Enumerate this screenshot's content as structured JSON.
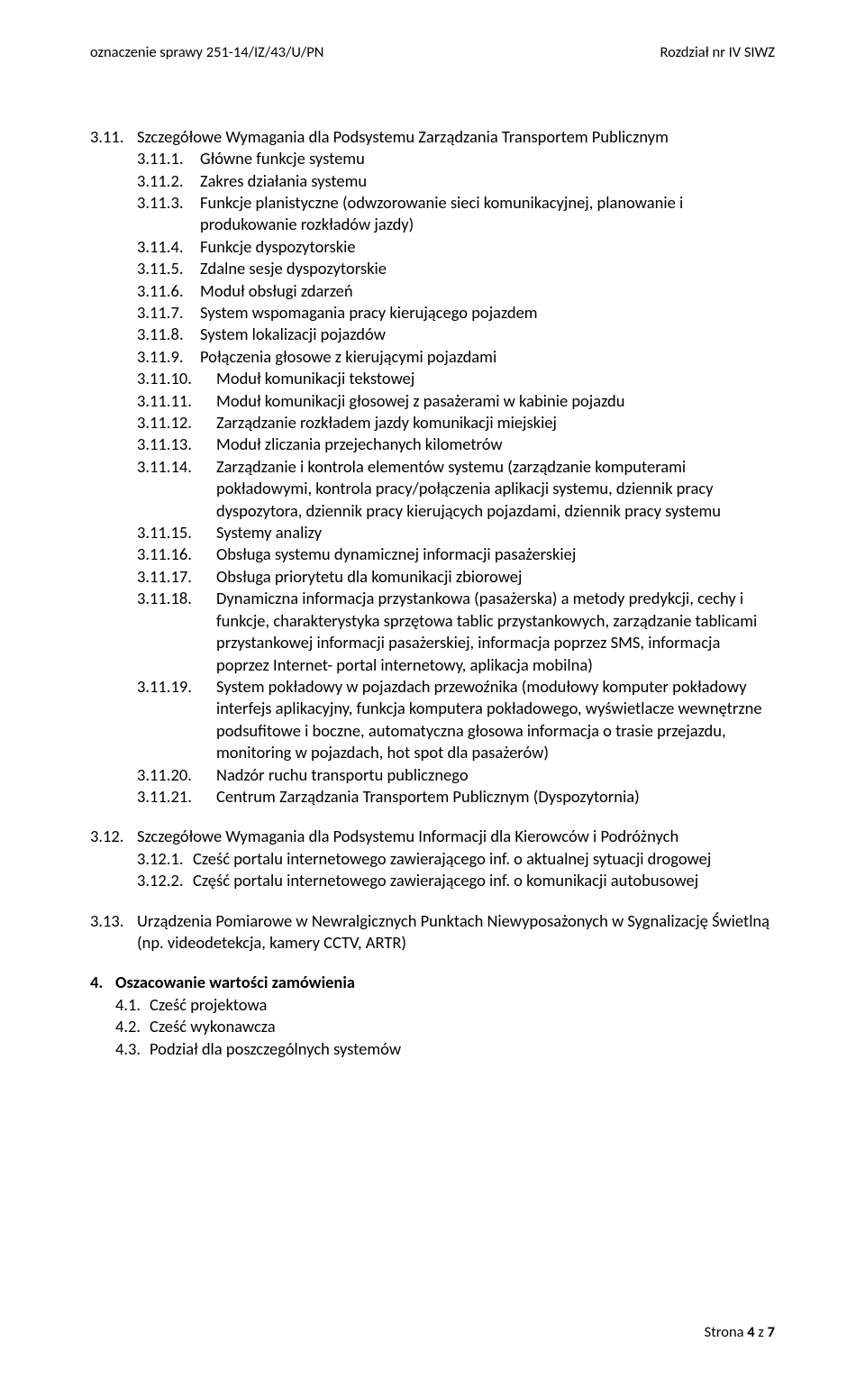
{
  "header": {
    "left": "oznaczenie sprawy 251-14/IZ/43/U/PN",
    "right": "Rozdział nr IV SIWZ"
  },
  "s311": {
    "num": "3.11.",
    "title": "Szczegółowe Wymagania dla Podsystemu Zarządzania Transportem Publicznym",
    "items_a": [
      {
        "num": "3.11.1.",
        "txt": "Główne funkcje systemu"
      },
      {
        "num": "3.11.2.",
        "txt": "Zakres działania systemu"
      },
      {
        "num": "3.11.3.",
        "txt": "Funkcje planistyczne (odwzorowanie sieci komunikacyjnej, planowanie i produkowanie rozkładów jazdy)"
      },
      {
        "num": "3.11.4.",
        "txt": "Funkcje dyspozytorskie"
      },
      {
        "num": "3.11.5.",
        "txt": "Zdalne sesje dyspozytorskie"
      },
      {
        "num": "3.11.6.",
        "txt": "Moduł obsługi zdarzeń"
      },
      {
        "num": "3.11.7.",
        "txt": " System wspomagania pracy kierującego pojazdem"
      },
      {
        "num": "3.11.8.",
        "txt": " System lokalizacji pojazdów"
      },
      {
        "num": "3.11.9.",
        "txt": " Połączenia głosowe z kierującymi pojazdami"
      }
    ],
    "items_b": [
      {
        "num": "3.11.10.",
        "txt": "Moduł komunikacji tekstowej"
      },
      {
        "num": "3.11.11.",
        "txt": "Moduł komunikacji głosowej z pasażerami w kabinie pojazdu"
      },
      {
        "num": "3.11.12.",
        "txt": "Zarządzanie rozkładem jazdy komunikacji miejskiej"
      },
      {
        "num": "3.11.13.",
        "txt": "Moduł zliczania przejechanych kilometrów"
      },
      {
        "num": "3.11.14.",
        "txt": "Zarządzanie i kontrola elementów systemu (zarządzanie komputerami pokładowymi, kontrola pracy/połączenia aplikacji systemu, dziennik pracy dyspozytora, dziennik pracy kierujących pojazdami, dziennik pracy systemu"
      },
      {
        "num": "3.11.15.",
        "txt": " Systemy analizy"
      },
      {
        "num": "3.11.16.",
        "txt": " Obsługa systemu dynamicznej informacji pasażerskiej"
      },
      {
        "num": "3.11.17.",
        "txt": " Obsługa priorytetu dla komunikacji zbiorowej"
      },
      {
        "num": "3.11.18.",
        "txt": " Dynamiczna informacja przystankowa (pasażerska) a metody predykcji, cechy i funkcje, charakterystyka sprzętowa tablic przystankowych, zarządzanie tablicami przystankowej informacji pasażerskiej, informacja poprzez SMS, informacja poprzez Internet- portal internetowy, aplikacja mobilna)"
      },
      {
        "num": "3.11.19.",
        "txt": " System pokładowy w pojazdach przewoźnika (modułowy komputer pokładowy interfejs aplikacyjny, funkcja komputera pokładowego, wyświetlacze wewnętrzne podsufitowe i boczne, automatyczna głosowa informacja o trasie przejazdu, monitoring w pojazdach, hot spot dla pasażerów)"
      },
      {
        "num": "3.11.20.",
        "txt": " Nadzór ruchu transportu publicznego"
      },
      {
        "num": "3.11.21.",
        "txt": " Centrum Zarządzania Transportem Publicznym (Dyspozytornia)"
      }
    ]
  },
  "s312": {
    "num": "3.12.",
    "title": "Szczegółowe Wymagania dla Podsystemu Informacji dla Kierowców i Podróżnych",
    "items": [
      {
        "num": "3.12.1.",
        "txt": "Cześć portalu internetowego zawierającego inf. o aktualnej sytuacji drogowej"
      },
      {
        "num": "3.12.2.",
        "txt": "Część portalu internetowego zawierającego inf. o komunikacji autobusowej"
      }
    ]
  },
  "s313": {
    "num": "3.13.",
    "txt": "Urządzenia Pomiarowe w Newralgicznych Punktach Niewyposażonych w Sygnalizację Świetlną (np. videodetekcja, kamery CCTV, ARTR)"
  },
  "s4": {
    "num": "4.",
    "title": "Oszacowanie wartości zamówienia",
    "items": [
      {
        "num": "4.1.",
        "txt": "Cześć projektowa"
      },
      {
        "num": "4.2.",
        "txt": "Cześć wykonawcza"
      },
      {
        "num": "4.3.",
        "txt": "Podział dla poszczególnych systemów"
      }
    ]
  },
  "footer": {
    "label": "Strona ",
    "page": "4",
    "sep": " z ",
    "total": "7"
  }
}
